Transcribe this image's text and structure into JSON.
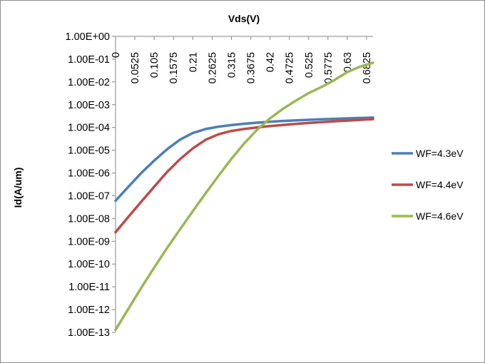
{
  "chart_data": {
    "type": "line",
    "title": "",
    "xlabel": "Vds(V)",
    "ylabel": "Id(A/um)",
    "y_scale": "log",
    "ylim": [
      1e-13,
      1
    ],
    "xlim": [
      0,
      0.7
    ],
    "x_axis_position": "top",
    "x_tick_label_orientation": "vertical",
    "grid": false,
    "legend_position": "right",
    "y_ticks": [
      1e-13,
      1e-12,
      1e-11,
      1e-10,
      1e-09,
      1e-08,
      1e-07,
      1e-06,
      1e-05,
      0.0001,
      0.001,
      0.01,
      0.1,
      1
    ],
    "y_tick_labels": [
      "1.00E-13",
      "1.00E-12",
      "1.00E-11",
      "1.00E-10",
      "1.00E-09",
      "1.00E-08",
      "1.00E-07",
      "1.00E-06",
      "1.00E-05",
      "1.00E-04",
      "1.00E-03",
      "1.00E-02",
      "1.00E-01",
      "1.00E+00"
    ],
    "x_ticks": [
      0,
      0.0525,
      0.105,
      0.1575,
      0.21,
      0.2625,
      0.315,
      0.3675,
      0.42,
      0.4725,
      0.525,
      0.5775,
      0.63,
      0.6825
    ],
    "x_tick_labels": [
      "0",
      "0.0525",
      "0.105",
      "0.1575",
      "0.21",
      "0.2625",
      "0.315",
      "0.3675",
      "0.42",
      "0.4725",
      "0.525",
      "0.5775",
      "0.63",
      "0.6825"
    ],
    "x": [
      0,
      0.035,
      0.07,
      0.105,
      0.14,
      0.175,
      0.21,
      0.245,
      0.28,
      0.315,
      0.35,
      0.385,
      0.42,
      0.455,
      0.49,
      0.525,
      0.56,
      0.595,
      0.63,
      0.665,
      0.7
    ],
    "series": [
      {
        "name": "WF=4.3eV",
        "color": "#4a7ebb",
        "values": [
          6e-08,
          2.5e-07,
          1e-06,
          3.5e-06,
          1.1e-05,
          2.9e-05,
          5.7e-05,
          8.5e-05,
          0.000108,
          0.000127,
          0.000145,
          0.000162,
          0.000178,
          0.000192,
          0.000205,
          0.000217,
          0.000228,
          0.00024,
          0.00025,
          0.00026,
          0.00027
        ]
      },
      {
        "name": "WF=4.4eV",
        "color": "#be4b48",
        "values": [
          2.5e-09,
          1.2e-08,
          5.5e-08,
          2.5e-07,
          1.1e-06,
          4e-06,
          1.2e-05,
          2.9e-05,
          5e-05,
          7e-05,
          8.6e-05,
          0.000101,
          0.000115,
          0.000129,
          0.000143,
          0.000158,
          0.000172,
          0.000186,
          0.0002,
          0.000215,
          0.00023
        ]
      },
      {
        "name": "WF=4.6eV",
        "color": "#98b954",
        "values": [
          1.3e-13,
          1.1e-12,
          9e-12,
          7e-11,
          5e-10,
          3.3e-09,
          2.1e-08,
          1.3e-07,
          7.5e-07,
          4.2e-06,
          2e-05,
          8e-05,
          0.00025,
          0.00065,
          0.0015,
          0.0032,
          0.006,
          0.012,
          0.027,
          0.047,
          0.07
        ]
      }
    ]
  }
}
